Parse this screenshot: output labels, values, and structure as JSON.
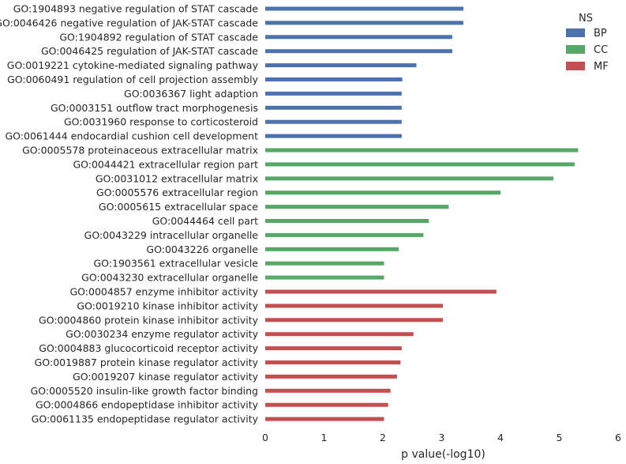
{
  "chart_data": {
    "type": "bar",
    "orientation": "horizontal",
    "xlabel": "p value(-log10)",
    "ylabel": "",
    "xlim": [
      0,
      6
    ],
    "xticks": [
      "0",
      "1",
      "2",
      "3",
      "4",
      "5",
      "6"
    ],
    "grid": false,
    "legend": {
      "title": "NS",
      "placement": "top-right",
      "entries": [
        {
          "name": "BP",
          "color": "#4c72b0"
        },
        {
          "name": "CC",
          "color": "#55a868"
        },
        {
          "name": "MF",
          "color": "#c44e52"
        }
      ]
    },
    "categories": [
      {
        "label": "GO:1904893 negative regulation of STAT cascade",
        "value": 3.37,
        "ns": "BP"
      },
      {
        "label": "GO:0046426 negative regulation of JAK-STAT cascade",
        "value": 3.37,
        "ns": "BP"
      },
      {
        "label": "GO:1904892 regulation of STAT cascade",
        "value": 3.18,
        "ns": "BP"
      },
      {
        "label": "GO:0046425 regulation of JAK-STAT cascade",
        "value": 3.18,
        "ns": "BP"
      },
      {
        "label": "GO:0019221 cytokine-mediated signaling pathway",
        "value": 2.57,
        "ns": "BP"
      },
      {
        "label": "GO:0060491 regulation of cell projection assembly",
        "value": 2.33,
        "ns": "BP"
      },
      {
        "label": "GO:0036367 light adaption",
        "value": 2.32,
        "ns": "BP"
      },
      {
        "label": "GO:0003151 outflow tract morphogenesis",
        "value": 2.32,
        "ns": "BP"
      },
      {
        "label": "GO:0031960 response to corticosteroid",
        "value": 2.32,
        "ns": "BP"
      },
      {
        "label": "GO:0061444 endocardial cushion cell development",
        "value": 2.32,
        "ns": "BP"
      },
      {
        "label": "GO:0005578 proteinaceous extracellular matrix",
        "value": 5.32,
        "ns": "CC"
      },
      {
        "label": "GO:0044421 extracellular region part",
        "value": 5.26,
        "ns": "CC"
      },
      {
        "label": "GO:0031012 extracellular matrix",
        "value": 4.9,
        "ns": "CC"
      },
      {
        "label": "GO:0005576 extracellular region",
        "value": 4.0,
        "ns": "CC"
      },
      {
        "label": "GO:0005615 extracellular space",
        "value": 3.12,
        "ns": "CC"
      },
      {
        "label": "GO:0044464 cell part",
        "value": 2.78,
        "ns": "CC"
      },
      {
        "label": "GO:0043229 intracellular organelle",
        "value": 2.69,
        "ns": "CC"
      },
      {
        "label": "GO:0043226 organelle",
        "value": 2.27,
        "ns": "CC"
      },
      {
        "label": "GO:1903561 extracellular vesicle",
        "value": 2.02,
        "ns": "CC"
      },
      {
        "label": "GO:0043230 extracellular organelle",
        "value": 2.02,
        "ns": "CC"
      },
      {
        "label": "GO:0004857 enzyme inhibitor activity",
        "value": 3.93,
        "ns": "MF"
      },
      {
        "label": "GO:0019210 kinase inhibitor activity",
        "value": 3.02,
        "ns": "MF"
      },
      {
        "label": "GO:0004860 protein kinase inhibitor activity",
        "value": 3.02,
        "ns": "MF"
      },
      {
        "label": "GO:0030234 enzyme regulator activity",
        "value": 2.52,
        "ns": "MF"
      },
      {
        "label": "GO:0004883 glucocorticoid receptor activity",
        "value": 2.32,
        "ns": "MF"
      },
      {
        "label": "GO:0019887 protein kinase regulator activity",
        "value": 2.3,
        "ns": "MF"
      },
      {
        "label": "GO:0019207 kinase regulator activity",
        "value": 2.24,
        "ns": "MF"
      },
      {
        "label": "GO:0005520 insulin-like growth factor binding",
        "value": 2.13,
        "ns": "MF"
      },
      {
        "label": "GO:0004866 endopeptidase inhibitor activity",
        "value": 2.09,
        "ns": "MF"
      },
      {
        "label": "GO:0061135 endopeptidase regulator activity",
        "value": 2.02,
        "ns": "MF"
      }
    ]
  }
}
